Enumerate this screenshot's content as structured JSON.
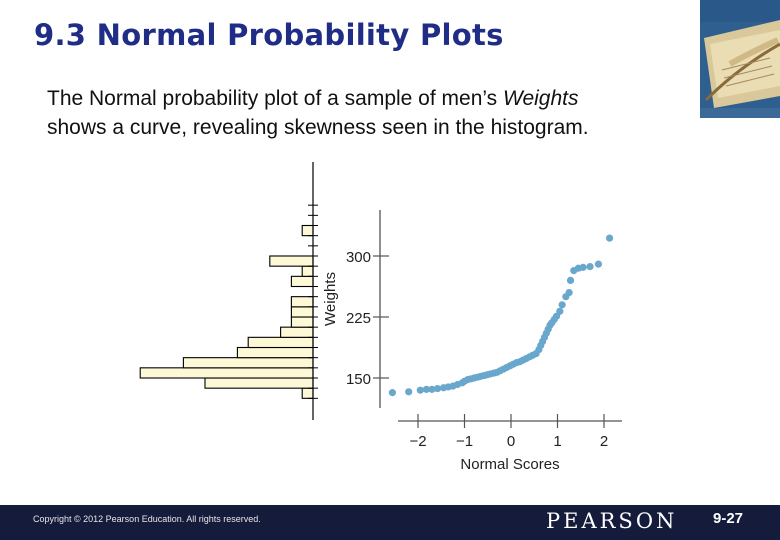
{
  "slide": {
    "title": "9.3 Normal Probability Plots",
    "body_line1_prefix": "The Normal probability plot of a sample of men’s ",
    "body_line1_italic": "Weights",
    "body_line2": "shows a curve, revealing skewness seen in the histogram."
  },
  "footer": {
    "copyright": "Copyright © 2012  Pearson Education. All rights reserved.",
    "brand": "PEARSON",
    "page": "9-27"
  },
  "colors": {
    "title": "#1f2d86",
    "bar_fill": "#fdf8d6",
    "point": "#6aa7cc",
    "footer_bg": "#141b3b"
  },
  "chart_data": {
    "type": "scatter",
    "xlabel": "Normal Scores",
    "ylabel": "Weights",
    "xlim": [
      -2.4,
      2.55
    ],
    "ylim": [
      125,
      335
    ],
    "xticks": [
      -2,
      -1,
      0,
      1,
      2
    ],
    "xtick_labels": [
      "−2",
      "−1",
      "0",
      "1",
      "2"
    ],
    "yticks": [
      150,
      225,
      300
    ],
    "ytick_labels": [
      "150",
      "225",
      "300"
    ],
    "points": [
      [
        -2.55,
        132
      ],
      [
        -2.2,
        133
      ],
      [
        -1.95,
        135
      ],
      [
        -1.82,
        136
      ],
      [
        -1.7,
        136
      ],
      [
        -1.58,
        137
      ],
      [
        -1.45,
        138
      ],
      [
        -1.35,
        139
      ],
      [
        -1.25,
        140
      ],
      [
        -1.15,
        142
      ],
      [
        -1.05,
        144
      ],
      [
        -1.0,
        146
      ],
      [
        -0.93,
        148
      ],
      [
        -0.86,
        149
      ],
      [
        -0.79,
        150
      ],
      [
        -0.72,
        151
      ],
      [
        -0.65,
        152
      ],
      [
        -0.58,
        153
      ],
      [
        -0.51,
        154
      ],
      [
        -0.44,
        155
      ],
      [
        -0.37,
        156
      ],
      [
        -0.3,
        157
      ],
      [
        -0.23,
        159
      ],
      [
        -0.16,
        161
      ],
      [
        -0.09,
        163
      ],
      [
        -0.02,
        165
      ],
      [
        0.05,
        167
      ],
      [
        0.12,
        169
      ],
      [
        0.19,
        170
      ],
      [
        0.26,
        172
      ],
      [
        0.33,
        174
      ],
      [
        0.4,
        176
      ],
      [
        0.47,
        178
      ],
      [
        0.54,
        180
      ],
      [
        0.6,
        185
      ],
      [
        0.64,
        190
      ],
      [
        0.68,
        195
      ],
      [
        0.72,
        200
      ],
      [
        0.76,
        205
      ],
      [
        0.8,
        210
      ],
      [
        0.84,
        215
      ],
      [
        0.88,
        218
      ],
      [
        0.93,
        222
      ],
      [
        0.98,
        226
      ],
      [
        1.05,
        232
      ],
      [
        1.1,
        240
      ],
      [
        1.18,
        250
      ],
      [
        1.25,
        255
      ],
      [
        1.28,
        270
      ],
      [
        1.35,
        282
      ],
      [
        1.45,
        285
      ],
      [
        1.55,
        286
      ],
      [
        1.7,
        287
      ],
      [
        1.88,
        290
      ],
      [
        2.12,
        322
      ]
    ],
    "histogram": {
      "orientation": "horizontal",
      "bins": [
        {
          "range": [
            125,
            137.5
          ],
          "count": 0.5
        },
        {
          "range": [
            137.5,
            150
          ],
          "count": 5
        },
        {
          "range": [
            150,
            162.5
          ],
          "count": 8
        },
        {
          "range": [
            162.5,
            175
          ],
          "count": 6
        },
        {
          "range": [
            175,
            187.5
          ],
          "count": 3.5
        },
        {
          "range": [
            187.5,
            200
          ],
          "count": 3
        },
        {
          "range": [
            200,
            212.5
          ],
          "count": 1.5
        },
        {
          "range": [
            212.5,
            225
          ],
          "count": 1
        },
        {
          "range": [
            225,
            237.5
          ],
          "count": 1
        },
        {
          "range": [
            237.5,
            250
          ],
          "count": 1
        },
        {
          "range": [
            250,
            262.5
          ],
          "count": 0
        },
        {
          "range": [
            262.5,
            275
          ],
          "count": 1
        },
        {
          "range": [
            275,
            287.5
          ],
          "count": 0.5
        },
        {
          "range": [
            287.5,
            300
          ],
          "count": 2
        },
        {
          "range": [
            300,
            312.5
          ],
          "count": 0
        },
        {
          "range": [
            312.5,
            325
          ],
          "count": 0
        },
        {
          "range": [
            325,
            337.5
          ],
          "count": 0.5
        },
        {
          "range": [
            337.5,
            350
          ],
          "count": 0
        }
      ]
    }
  }
}
